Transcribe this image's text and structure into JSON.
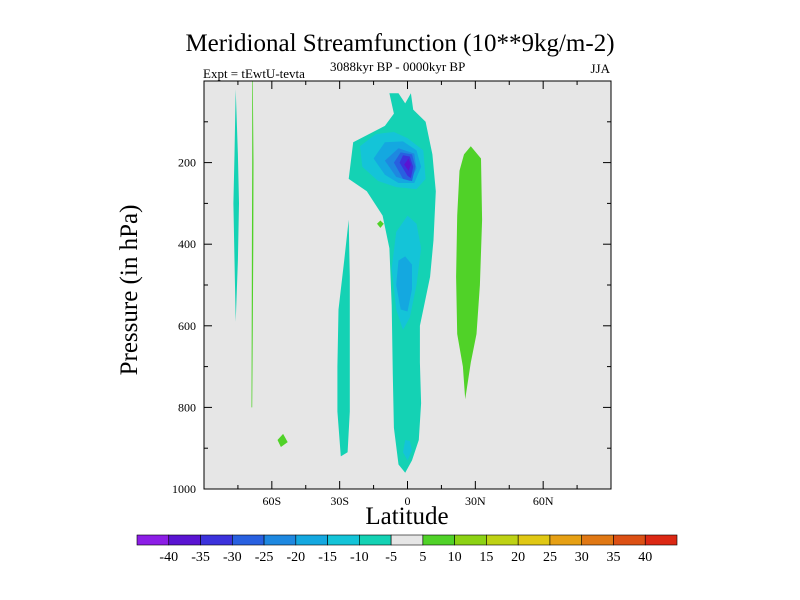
{
  "chart_data": {
    "type": "heatmap",
    "title": "Meridional Streamfunction (10**9kg/m-2)",
    "subtitle": "3088kyr BP - 0000kyr BP",
    "left_string": "Expt = tEwtU-tevta",
    "right_string": "JJA",
    "xlabel": "Latitude",
    "ylabel": "Pressure (in hPa)",
    "xlim": [
      -90,
      90
    ],
    "ylim": [
      1000,
      0
    ],
    "x_ticks": [
      {
        "value": -60,
        "label": "60S"
      },
      {
        "value": -30,
        "label": "30S"
      },
      {
        "value": 0,
        "label": "0"
      },
      {
        "value": 30,
        "label": "30N"
      },
      {
        "value": 60,
        "label": "60N"
      }
    ],
    "y_ticks": [
      {
        "value": 200,
        "label": "200"
      },
      {
        "value": 400,
        "label": "400"
      },
      {
        "value": 600,
        "label": "600"
      },
      {
        "value": 800,
        "label": "800"
      },
      {
        "value": 1000,
        "label": "1000"
      }
    ],
    "colorbar": {
      "labels": [
        "-40",
        "-35",
        "-30",
        "-25",
        "-20",
        "-15",
        "-10",
        "-5",
        "5",
        "10",
        "15",
        "20",
        "25",
        "30",
        "35",
        "40"
      ],
      "colors": [
        "#8c1ee6",
        "#5a14d2",
        "#3c32dc",
        "#2860e0",
        "#1e88e0",
        "#14a8e0",
        "#14c4d8",
        "#14d2b4",
        "#e6e6e6",
        "#50d228",
        "#8cd214",
        "#bed214",
        "#e0c814",
        "#e6a014",
        "#e07814",
        "#dc5014",
        "#dc2814"
      ]
    },
    "background_level": "-5 to 5",
    "regions": [
      {
        "name": "southern-polar-cyan-band",
        "level": "-10 to -5",
        "points": [
          [
            -76,
            20
          ],
          [
            -75,
            180
          ],
          [
            -74.5,
            300
          ],
          [
            -75,
            440
          ],
          [
            -76,
            590
          ],
          [
            -76.5,
            440
          ],
          [
            -77,
            300
          ],
          [
            -76.5,
            180
          ]
        ]
      },
      {
        "name": "southern-polar-green-strip",
        "level": "5 to 10",
        "points": [
          [
            -68.4,
            0
          ],
          [
            -68.1,
            200
          ],
          [
            -68.2,
            400
          ],
          [
            -68.4,
            600
          ],
          [
            -68.7,
            800
          ],
          [
            -69,
            800
          ],
          [
            -68.9,
            600
          ],
          [
            -68.8,
            400
          ],
          [
            -68.7,
            200
          ],
          [
            -68.7,
            0
          ]
        ]
      },
      {
        "name": "southern-midlat-cyan-lobe",
        "level": "-10 to -5",
        "points": [
          [
            -26,
            340
          ],
          [
            -28,
            440
          ],
          [
            -30.5,
            560
          ],
          [
            -31,
            700
          ],
          [
            -31,
            810
          ],
          [
            -29.5,
            920
          ],
          [
            -26.5,
            910
          ],
          [
            -25.5,
            810
          ],
          [
            -25.5,
            620
          ],
          [
            -25.5,
            480
          ]
        ]
      },
      {
        "name": "equatorial-cyan-column",
        "level": "-10 to -5",
        "points": [
          [
            -8,
            30
          ],
          [
            -6,
            80
          ],
          [
            -10,
            110
          ],
          [
            -24,
            150
          ],
          [
            -26,
            240
          ],
          [
            -18,
            270
          ],
          [
            -11,
            330
          ],
          [
            -8,
            410
          ],
          [
            -7,
            550
          ],
          [
            -6.5,
            720
          ],
          [
            -6,
            850
          ],
          [
            -4,
            940
          ],
          [
            -1,
            960
          ],
          [
            2,
            930
          ],
          [
            5,
            880
          ],
          [
            6,
            790
          ],
          [
            5.5,
            690
          ],
          [
            5.5,
            600
          ],
          [
            7,
            560
          ],
          [
            10,
            480
          ],
          [
            11.5,
            390
          ],
          [
            12.5,
            270
          ],
          [
            11,
            180
          ],
          [
            8,
            100
          ],
          [
            2.5,
            70
          ],
          [
            1.5,
            30
          ],
          [
            -1,
            55
          ],
          [
            -4,
            30
          ]
        ]
      },
      {
        "name": "cyan-blob-150hpa",
        "level": "-15 to -10",
        "points": [
          [
            -14,
            130
          ],
          [
            -21,
            160
          ],
          [
            -20,
            210
          ],
          [
            -13,
            245
          ],
          [
            -5,
            260
          ],
          [
            4,
            265
          ],
          [
            8,
            240
          ],
          [
            7,
            170
          ],
          [
            0,
            140
          ],
          [
            -6,
            125
          ]
        ]
      },
      {
        "name": "blue-core-20",
        "level": "-20 to -15",
        "points": [
          [
            -10,
            150
          ],
          [
            -15,
            190
          ],
          [
            -10,
            230
          ],
          [
            -4,
            250
          ],
          [
            3,
            250
          ],
          [
            6,
            210
          ],
          [
            4,
            170
          ],
          [
            -2,
            148
          ]
        ]
      },
      {
        "name": "blue-core-25",
        "level": "-25 to -20",
        "points": [
          [
            -4,
            165
          ],
          [
            -10,
            195
          ],
          [
            -5,
            235
          ],
          [
            1,
            245
          ],
          [
            4,
            215
          ],
          [
            3,
            178
          ]
        ]
      },
      {
        "name": "blue-core-30",
        "level": "-30 to -25",
        "points": [
          [
            -3,
            175
          ],
          [
            -6,
            200
          ],
          [
            -2,
            240
          ],
          [
            2,
            245
          ],
          [
            3.5,
            210
          ],
          [
            2,
            180
          ]
        ]
      },
      {
        "name": "blue-core-35",
        "level": "-35 to -30",
        "points": [
          [
            -2,
            182
          ],
          [
            -3.5,
            200
          ],
          [
            0,
            232
          ],
          [
            1.5,
            238
          ],
          [
            2.5,
            210
          ],
          [
            1,
            185
          ]
        ]
      },
      {
        "name": "blue-core-40",
        "level": "-40 to -35",
        "points": [
          [
            0.5,
            190
          ],
          [
            -1.5,
            205
          ],
          [
            0.5,
            220
          ],
          [
            1.5,
            205
          ]
        ]
      },
      {
        "name": "mid-column-blue-patch",
        "level": "-15 to -10",
        "points": [
          [
            -5,
            370
          ],
          [
            -7,
            460
          ],
          [
            -5,
            560
          ],
          [
            -2,
            610
          ],
          [
            1,
            580
          ],
          [
            4,
            500
          ],
          [
            6,
            410
          ],
          [
            4,
            350
          ],
          [
            0,
            330
          ]
        ]
      },
      {
        "name": "mid-column-blue-patch-inner",
        "level": "-20 to -15",
        "points": [
          [
            -4,
            440
          ],
          [
            -5,
            500
          ],
          [
            -3,
            560
          ],
          [
            0,
            565
          ],
          [
            2,
            510
          ],
          [
            2,
            450
          ],
          [
            -1,
            430
          ]
        ]
      },
      {
        "name": "near-surface-blue-spot",
        "level": "-15 to -10",
        "points": [
          [
            -1,
            880
          ],
          [
            -2,
            910
          ],
          [
            0,
            930
          ],
          [
            2,
            905
          ],
          [
            1,
            882
          ]
        ]
      },
      {
        "name": "tiny-green-diamond-350",
        "level": "5 to 10",
        "points": [
          [
            -12,
            342
          ],
          [
            -10.5,
            350
          ],
          [
            -12,
            360
          ],
          [
            -13.5,
            350
          ]
        ]
      },
      {
        "name": "green-diamond-880",
        "level": "5 to 10",
        "points": [
          [
            -55,
            865
          ],
          [
            -53,
            885
          ],
          [
            -56,
            897
          ],
          [
            -57.5,
            880
          ]
        ]
      },
      {
        "name": "northern-green-lobe",
        "level": "5 to 10",
        "points": [
          [
            28,
            160
          ],
          [
            32.5,
            190
          ],
          [
            33,
            340
          ],
          [
            32,
            500
          ],
          [
            30.5,
            620
          ],
          [
            28,
            690
          ],
          [
            25.5,
            780
          ],
          [
            24.5,
            700
          ],
          [
            22,
            620
          ],
          [
            21.5,
            480
          ],
          [
            22,
            330
          ],
          [
            23,
            220
          ],
          [
            25,
            180
          ]
        ]
      }
    ]
  }
}
